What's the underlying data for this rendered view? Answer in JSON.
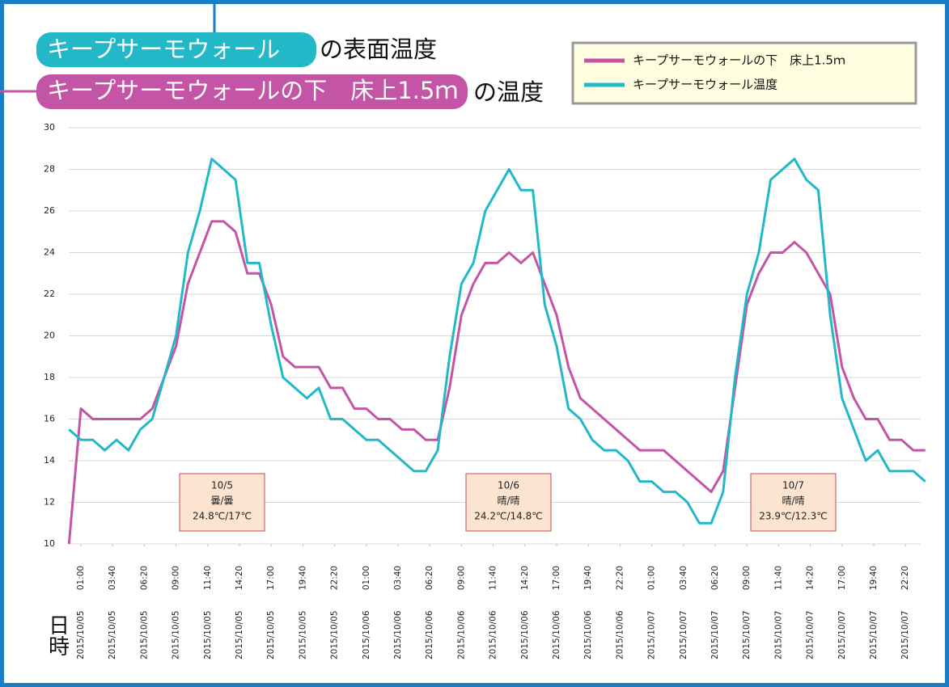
{
  "chart_data": {
    "type": "line",
    "titles": [
      [
        "キープサーモウォール",
        "の表面温度"
      ],
      [
        "キープサーモウォールの下　床上1.5ｍ",
        "の温度"
      ]
    ],
    "x_label": "日時",
    "x": [
      0,
      1,
      2,
      3,
      4,
      5,
      6,
      7,
      8,
      9,
      10,
      11,
      12,
      13,
      14,
      15,
      16,
      17,
      18,
      19,
      20,
      21,
      22,
      23,
      24,
      25,
      26,
      27,
      28,
      29,
      30,
      31,
      32,
      33,
      34,
      35,
      36,
      37,
      38,
      39,
      40,
      41,
      42,
      43,
      44,
      45,
      46,
      47,
      48,
      49,
      50,
      51,
      52,
      53,
      54,
      55,
      56,
      57,
      58,
      59,
      60,
      61,
      62,
      63,
      64,
      65,
      66,
      67,
      68,
      69,
      70,
      71,
      72
    ],
    "series": [
      {
        "name": "キープサーモウォールの下　床上1.5ｍ",
        "color": "#c455a6",
        "values": [
          10,
          16.5,
          16,
          16,
          16,
          16,
          16,
          16.5,
          18,
          19.5,
          22.5,
          24,
          25.5,
          25.5,
          25,
          23,
          23,
          21.5,
          19,
          18.5,
          18.5,
          18.5,
          17.5,
          17.5,
          16.5,
          16.5,
          16,
          16,
          15.5,
          15.5,
          15,
          15,
          17.5,
          21,
          22.5,
          23.5,
          23.5,
          24,
          23.5,
          24,
          22.5,
          21,
          18.5,
          17,
          16.5,
          16,
          15.5,
          15,
          14.5,
          14.5,
          14.5,
          14,
          13.5,
          13,
          12.5,
          13.5,
          17.5,
          21.5,
          23,
          24,
          24,
          24.5,
          24,
          23,
          22,
          18.5,
          17,
          16,
          16,
          15,
          15,
          14.5,
          14.5
        ]
      },
      {
        "name": "キープサーモウォール温度",
        "color": "#22b8c8",
        "values": [
          15.5,
          15,
          15,
          14.5,
          15,
          14.5,
          15.5,
          16,
          18,
          20,
          24,
          26,
          28.5,
          28,
          27.5,
          23.5,
          23.5,
          20.5,
          18,
          17.5,
          17,
          17.5,
          16,
          16,
          15.5,
          15,
          15,
          14.5,
          14,
          13.5,
          13.5,
          14.5,
          19,
          22.5,
          23.5,
          26,
          27,
          28,
          27,
          27,
          21.5,
          19.5,
          16.5,
          16,
          15,
          14.5,
          14.5,
          14,
          13,
          13,
          12.5,
          12.5,
          12,
          11,
          11,
          12.5,
          18,
          22,
          24,
          27.5,
          28,
          28.5,
          27.5,
          27,
          21,
          17,
          15.5,
          14,
          14.5,
          13.5,
          13.5,
          13.5,
          13
        ]
      }
    ],
    "xlim": [
      0,
      72
    ],
    "xticks": [
      {
        "value": 1,
        "label": "2015/10/05 01:00"
      },
      {
        "value": 3.667,
        "label": "2015/10/05 03:40"
      },
      {
        "value": 6.333,
        "label": "2015/10/05 06:20"
      },
      {
        "value": 9,
        "label": "2015/10/05 09:00"
      },
      {
        "value": 11.667,
        "label": "2015/10/05 11:40"
      },
      {
        "value": 14.333,
        "label": "2015/10/05 14:20"
      },
      {
        "value": 17,
        "label": "2015/10/05 17:00"
      },
      {
        "value": 19.667,
        "label": "2015/10/05 19:40"
      },
      {
        "value": 22.333,
        "label": "2015/10/05 22:20"
      },
      {
        "value": 25,
        "label": "2015/10/06 01:00"
      },
      {
        "value": 27.667,
        "label": "2015/10/06 03:40"
      },
      {
        "value": 30.333,
        "label": "2015/10/06 06:20"
      },
      {
        "value": 33,
        "label": "2015/10/06 09:00"
      },
      {
        "value": 35.667,
        "label": "2015/10/06 11:40"
      },
      {
        "value": 38.333,
        "label": "2015/10/06 14:20"
      },
      {
        "value": 41,
        "label": "2015/10/06 17:00"
      },
      {
        "value": 43.667,
        "label": "2015/10/06 19:40"
      },
      {
        "value": 46.333,
        "label": "2015/10/06 22:20"
      },
      {
        "value": 49,
        "label": "2015/10/07 01:00"
      },
      {
        "value": 51.667,
        "label": "2015/10/07 03:40"
      },
      {
        "value": 54.333,
        "label": "2015/10/07 06:20"
      },
      {
        "value": 57,
        "label": "2015/10/07 09:00"
      },
      {
        "value": 59.667,
        "label": "2015/10/07 11:40"
      },
      {
        "value": 62.333,
        "label": "2015/10/07 14:20"
      },
      {
        "value": 65,
        "label": "2015/10/07 17:00"
      },
      {
        "value": 67.667,
        "label": "2015/10/07 19:40"
      },
      {
        "value": 70.333,
        "label": "2015/10/07 22:20"
      }
    ],
    "ylim": [
      10,
      30
    ],
    "yticks": [
      10,
      12,
      14,
      16,
      18,
      20,
      22,
      24,
      26,
      28,
      30
    ],
    "grid": true,
    "legend": "upper right",
    "annotations": [
      {
        "lines": [
          "10/5",
          "曇/曇",
          "24.8℃/17℃"
        ]
      },
      {
        "lines": [
          "10/6",
          "晴/晴",
          "24.2℃/14.8℃"
        ]
      },
      {
        "lines": [
          "10/7",
          "晴/晴",
          "23.9℃/12.3℃"
        ]
      }
    ]
  }
}
